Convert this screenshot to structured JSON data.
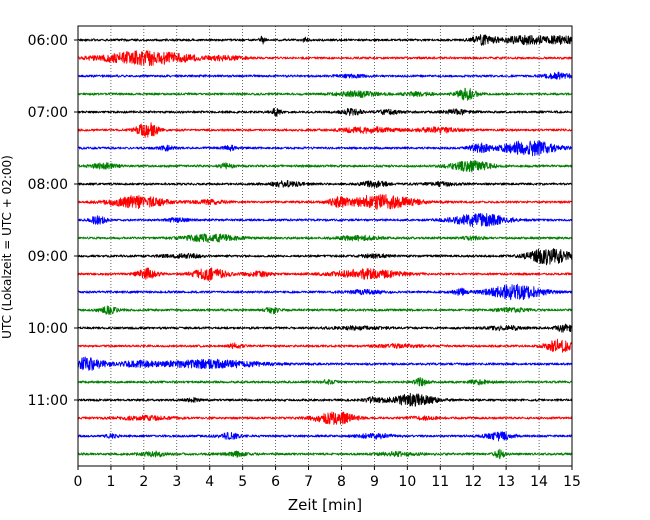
{
  "chart_data": {
    "type": "line",
    "title": "",
    "xlabel": "Zeit  [min]",
    "ylabel": "UTC (Lokalzeit = UTC + 02:00)",
    "xlim": [
      0,
      15
    ],
    "x_ticks": [
      0,
      1,
      2,
      3,
      4,
      5,
      6,
      7,
      8,
      9,
      10,
      11,
      12,
      13,
      14,
      15
    ],
    "y_tick_labels": [
      "06:00",
      "07:00",
      "08:00",
      "09:00",
      "10:00",
      "11:00"
    ],
    "grid": "vertical dotted",
    "trace_interval_min": 15,
    "trace_colors": [
      "#000000",
      "#ff0000",
      "#0000ff",
      "#008000"
    ],
    "traces": [
      {
        "start": "06:00",
        "color": "#000000",
        "events": [
          [
            5.6,
            0.9,
            0.08
          ],
          [
            6.9,
            0.6,
            0.08
          ],
          [
            12.3,
            1.0,
            0.35
          ],
          [
            13.6,
            0.9,
            0.8
          ],
          [
            14.7,
            0.8,
            0.4
          ]
        ]
      },
      {
        "start": "06:15",
        "color": "#ff0000",
        "events": [
          [
            2.1,
            1.6,
            1.3
          ],
          [
            4.5,
            0.4,
            0.6
          ]
        ]
      },
      {
        "start": "06:30",
        "color": "#0000ff",
        "events": [
          [
            14.6,
            0.7,
            0.4
          ],
          [
            8.3,
            0.3,
            0.5
          ]
        ]
      },
      {
        "start": "06:45",
        "color": "#008000",
        "events": [
          [
            11.8,
            1.3,
            0.3
          ],
          [
            8.5,
            0.6,
            0.6
          ],
          [
            10.3,
            0.4,
            0.4
          ]
        ]
      },
      {
        "start": "07:00",
        "color": "#000000",
        "events": [
          [
            6.0,
            0.9,
            0.15
          ],
          [
            8.3,
            0.7,
            0.3
          ],
          [
            9.4,
            0.5,
            0.3
          ],
          [
            11.5,
            0.5,
            0.4
          ]
        ]
      },
      {
        "start": "07:15",
        "color": "#ff0000",
        "events": [
          [
            2.1,
            1.9,
            0.3
          ],
          [
            8.8,
            0.6,
            0.8
          ],
          [
            10.9,
            0.6,
            0.6
          ]
        ]
      },
      {
        "start": "07:30",
        "color": "#0000ff",
        "events": [
          [
            13.7,
            1.7,
            0.8
          ],
          [
            12.2,
            0.9,
            0.3
          ],
          [
            4.6,
            0.5,
            0.2
          ],
          [
            2.7,
            0.5,
            0.2
          ]
        ]
      },
      {
        "start": "07:45",
        "color": "#008000",
        "events": [
          [
            11.9,
            1.2,
            0.6
          ],
          [
            0.8,
            0.6,
            0.4
          ],
          [
            4.5,
            0.6,
            0.2
          ]
        ]
      },
      {
        "start": "08:00",
        "color": "#000000",
        "events": [
          [
            6.3,
            0.6,
            0.5
          ],
          [
            9.0,
            0.6,
            0.4
          ],
          [
            11.0,
            0.4,
            0.5
          ]
        ]
      },
      {
        "start": "08:15",
        "color": "#ff0000",
        "events": [
          [
            1.8,
            1.4,
            0.8
          ],
          [
            9.2,
            1.6,
            1.0
          ],
          [
            7.9,
            0.8,
            0.3
          ],
          [
            4.0,
            0.4,
            0.5
          ]
        ]
      },
      {
        "start": "08:30",
        "color": "#0000ff",
        "events": [
          [
            12.2,
            1.4,
            0.8
          ],
          [
            0.6,
            0.9,
            0.25
          ],
          [
            3.0,
            0.4,
            0.3
          ]
        ]
      },
      {
        "start": "08:45",
        "color": "#008000",
        "events": [
          [
            4.0,
            0.8,
            0.8
          ],
          [
            8.5,
            0.5,
            0.6
          ],
          [
            12.0,
            0.4,
            0.3
          ]
        ]
      },
      {
        "start": "09:00",
        "color": "#000000",
        "events": [
          [
            14.3,
            1.9,
            0.6
          ],
          [
            3.2,
            0.4,
            0.6
          ],
          [
            9.0,
            0.4,
            0.4
          ]
        ]
      },
      {
        "start": "09:15",
        "color": "#ff0000",
        "events": [
          [
            2.1,
            1.2,
            0.3
          ],
          [
            4.0,
            1.3,
            0.5
          ],
          [
            8.8,
            1.0,
            1.0
          ],
          [
            5.5,
            0.5,
            0.4
          ]
        ]
      },
      {
        "start": "09:30",
        "color": "#0000ff",
        "events": [
          [
            13.3,
            1.7,
            0.8
          ],
          [
            11.6,
            0.7,
            0.2
          ],
          [
            8.7,
            0.4,
            0.6
          ]
        ]
      },
      {
        "start": "09:45",
        "color": "#008000",
        "events": [
          [
            0.9,
            0.9,
            0.25
          ],
          [
            5.9,
            0.7,
            0.2
          ],
          [
            13.2,
            0.4,
            0.5
          ]
        ]
      },
      {
        "start": "10:00",
        "color": "#000000",
        "events": [
          [
            14.8,
            0.8,
            0.3
          ],
          [
            13.0,
            0.5,
            0.5
          ],
          [
            8.5,
            0.3,
            0.8
          ]
        ]
      },
      {
        "start": "10:15",
        "color": "#ff0000",
        "events": [
          [
            14.6,
            1.4,
            0.4
          ],
          [
            4.8,
            0.6,
            0.2
          ],
          [
            9.7,
            0.4,
            0.6
          ]
        ]
      },
      {
        "start": "10:30",
        "color": "#0000ff",
        "events": [
          [
            0.2,
            1.5,
            0.6
          ],
          [
            4.0,
            0.9,
            1.5
          ],
          [
            1.8,
            0.6,
            0.5
          ]
        ]
      },
      {
        "start": "10:45",
        "color": "#008000",
        "events": [
          [
            10.4,
            0.8,
            0.2
          ],
          [
            7.6,
            0.5,
            0.2
          ],
          [
            12.2,
            0.5,
            0.3
          ]
        ]
      },
      {
        "start": "11:00",
        "color": "#000000",
        "events": [
          [
            10.2,
            1.4,
            0.6
          ],
          [
            9.0,
            0.6,
            0.3
          ],
          [
            3.5,
            0.4,
            0.2
          ]
        ]
      },
      {
        "start": "11:15",
        "color": "#ff0000",
        "events": [
          [
            7.8,
            1.4,
            0.6
          ],
          [
            2.0,
            0.4,
            0.8
          ],
          [
            10.5,
            0.3,
            0.5
          ]
        ]
      },
      {
        "start": "11:30",
        "color": "#0000ff",
        "events": [
          [
            12.8,
            0.9,
            0.4
          ],
          [
            4.6,
            0.6,
            0.3
          ],
          [
            9.0,
            0.5,
            0.5
          ],
          [
            1.0,
            0.4,
            0.2
          ]
        ]
      },
      {
        "start": "11:45",
        "color": "#008000",
        "events": [
          [
            12.8,
            1.0,
            0.15
          ],
          [
            4.8,
            0.5,
            0.3
          ],
          [
            2.3,
            0.5,
            0.4
          ],
          [
            9.7,
            0.4,
            0.6
          ]
        ]
      }
    ]
  }
}
